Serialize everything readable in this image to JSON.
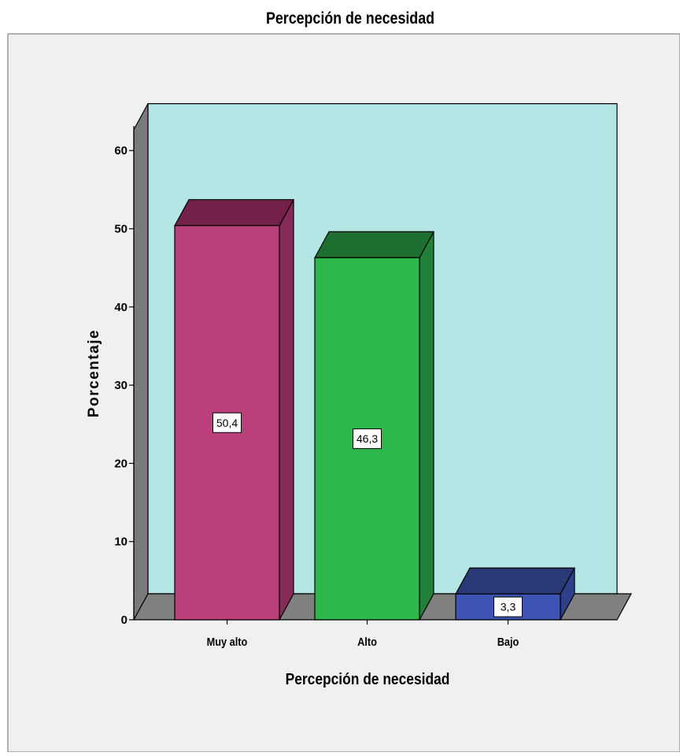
{
  "chart_data": {
    "type": "bar",
    "title": "Percepción de necesidad",
    "xlabel": "Percepción de necesidad",
    "ylabel": "Porcentaje",
    "categories": [
      "Muy alto",
      "Alto",
      "Bajo"
    ],
    "values": [
      50.4,
      46.3,
      3.3
    ],
    "value_labels": [
      "50,4",
      "46,3",
      "3,3"
    ],
    "y_ticks": [
      0,
      10,
      20,
      30,
      40,
      50,
      60
    ],
    "y_tick_labels": [
      "0",
      "10",
      "20",
      "30",
      "40",
      "50",
      "60"
    ],
    "ylim": [
      0,
      66
    ],
    "grid": false,
    "style": "3d",
    "colors": {
      "plot_background": "#b4e6e6",
      "outer_background": "#f0f0f0",
      "floor": "#808080",
      "wall_side": "#7a7a7a",
      "bars": [
        {
          "front": "#bb3f7b",
          "top": "#742149",
          "side": "#862b57"
        },
        {
          "front": "#2eb84c",
          "top": "#1f6e31",
          "side": "#23803a"
        },
        {
          "front": "#3d54b4",
          "top": "#283975",
          "side": "#2e4088"
        }
      ]
    }
  }
}
